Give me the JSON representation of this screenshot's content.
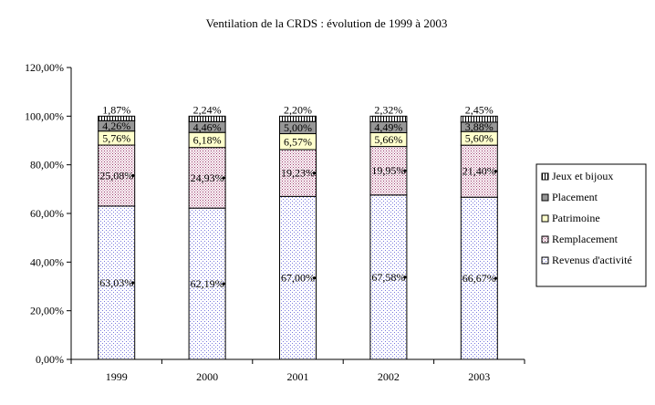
{
  "chart_data": {
    "type": "bar",
    "stacked": true,
    "percent": true,
    "title": "Ventilation de la CRDS : évolution de 1999 à 2003",
    "xlabel": "",
    "ylabel": "",
    "ylim": [
      0,
      120
    ],
    "yticks": [
      "0,00%",
      "20,00%",
      "40,00%",
      "60,00%",
      "80,00%",
      "100,00%",
      "120,00%"
    ],
    "categories": [
      "1999",
      "2000",
      "2001",
      "2002",
      "2003"
    ],
    "grid": false,
    "legend_position": "right",
    "series": [
      {
        "name": "Revenus d'activité",
        "values": [
          63.03,
          62.19,
          67.0,
          67.58,
          66.67
        ],
        "labels": [
          "63,03%",
          "62,19%",
          "67,00%",
          "67,58%",
          "66,67%"
        ],
        "color": "#9999ff",
        "pattern": "dots-blue"
      },
      {
        "name": "Remplacement",
        "values": [
          25.08,
          24.93,
          19.23,
          19.95,
          21.4
        ],
        "labels": [
          "25,08%",
          "24,93%",
          "19,23%",
          "19,95%",
          "21,40%"
        ],
        "color": "#993366",
        "pattern": "dots-maroon"
      },
      {
        "name": "Patrimoine",
        "values": [
          5.76,
          6.18,
          6.57,
          5.66,
          5.6
        ],
        "labels": [
          "5,76%",
          "6,18%",
          "6,57%",
          "5,66%",
          "5,60%"
        ],
        "color": "#ffffcc",
        "pattern": "solid"
      },
      {
        "name": "Placement",
        "values": [
          4.26,
          4.46,
          5.0,
          4.49,
          3.88
        ],
        "labels": [
          "4,26%",
          "4,46%",
          "5,00%",
          "4,49%",
          "3,88%"
        ],
        "color": "#969696",
        "pattern": "solid"
      },
      {
        "name": "Jeux et bijoux",
        "values": [
          1.87,
          2.24,
          2.2,
          2.32,
          2.45
        ],
        "labels": [
          "1,87%",
          "2,24%",
          "2,20%",
          "2,32%",
          "2,45%"
        ],
        "color": "#ffffff",
        "pattern": "vlines"
      }
    ]
  }
}
